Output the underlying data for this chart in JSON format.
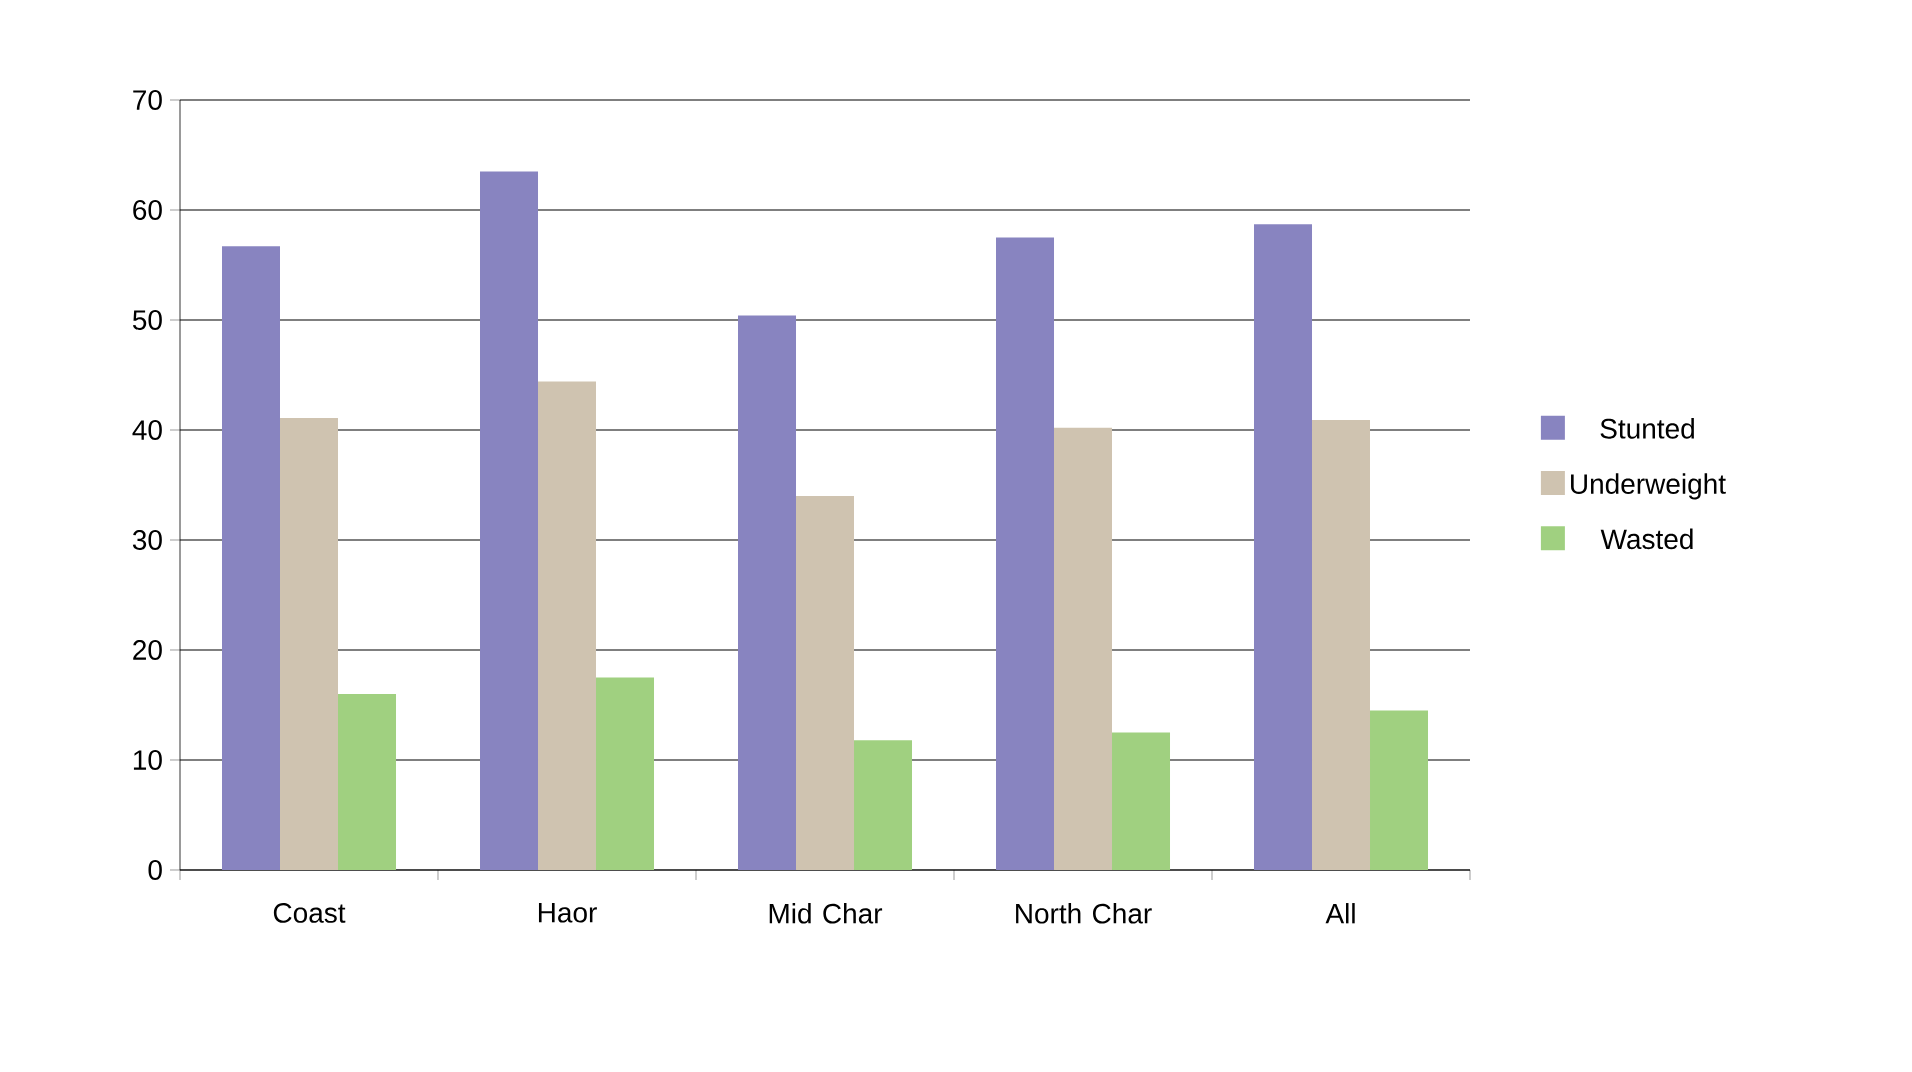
{
  "chart_data": {
    "type": "bar",
    "categories": [
      "Coast",
      "Haor",
      "Mid Char",
      "North Char",
      "All"
    ],
    "series": [
      {
        "name": "Stunted",
        "color": "#8884c0",
        "values": [
          56.7,
          63.5,
          50.4,
          57.5,
          58.7
        ]
      },
      {
        "name": "Underweight",
        "color": "#cfc3b0",
        "values": [
          41.1,
          44.4,
          34.0,
          40.2,
          40.9
        ]
      },
      {
        "name": "Wasted",
        "color": "#a0d080",
        "values": [
          16.0,
          17.5,
          11.8,
          12.5,
          14.5
        ]
      }
    ],
    "ylim": [
      0,
      70
    ],
    "yticks": [
      0,
      10,
      20,
      30,
      40,
      50,
      60,
      70
    ],
    "grid": "y",
    "legend": "right"
  }
}
